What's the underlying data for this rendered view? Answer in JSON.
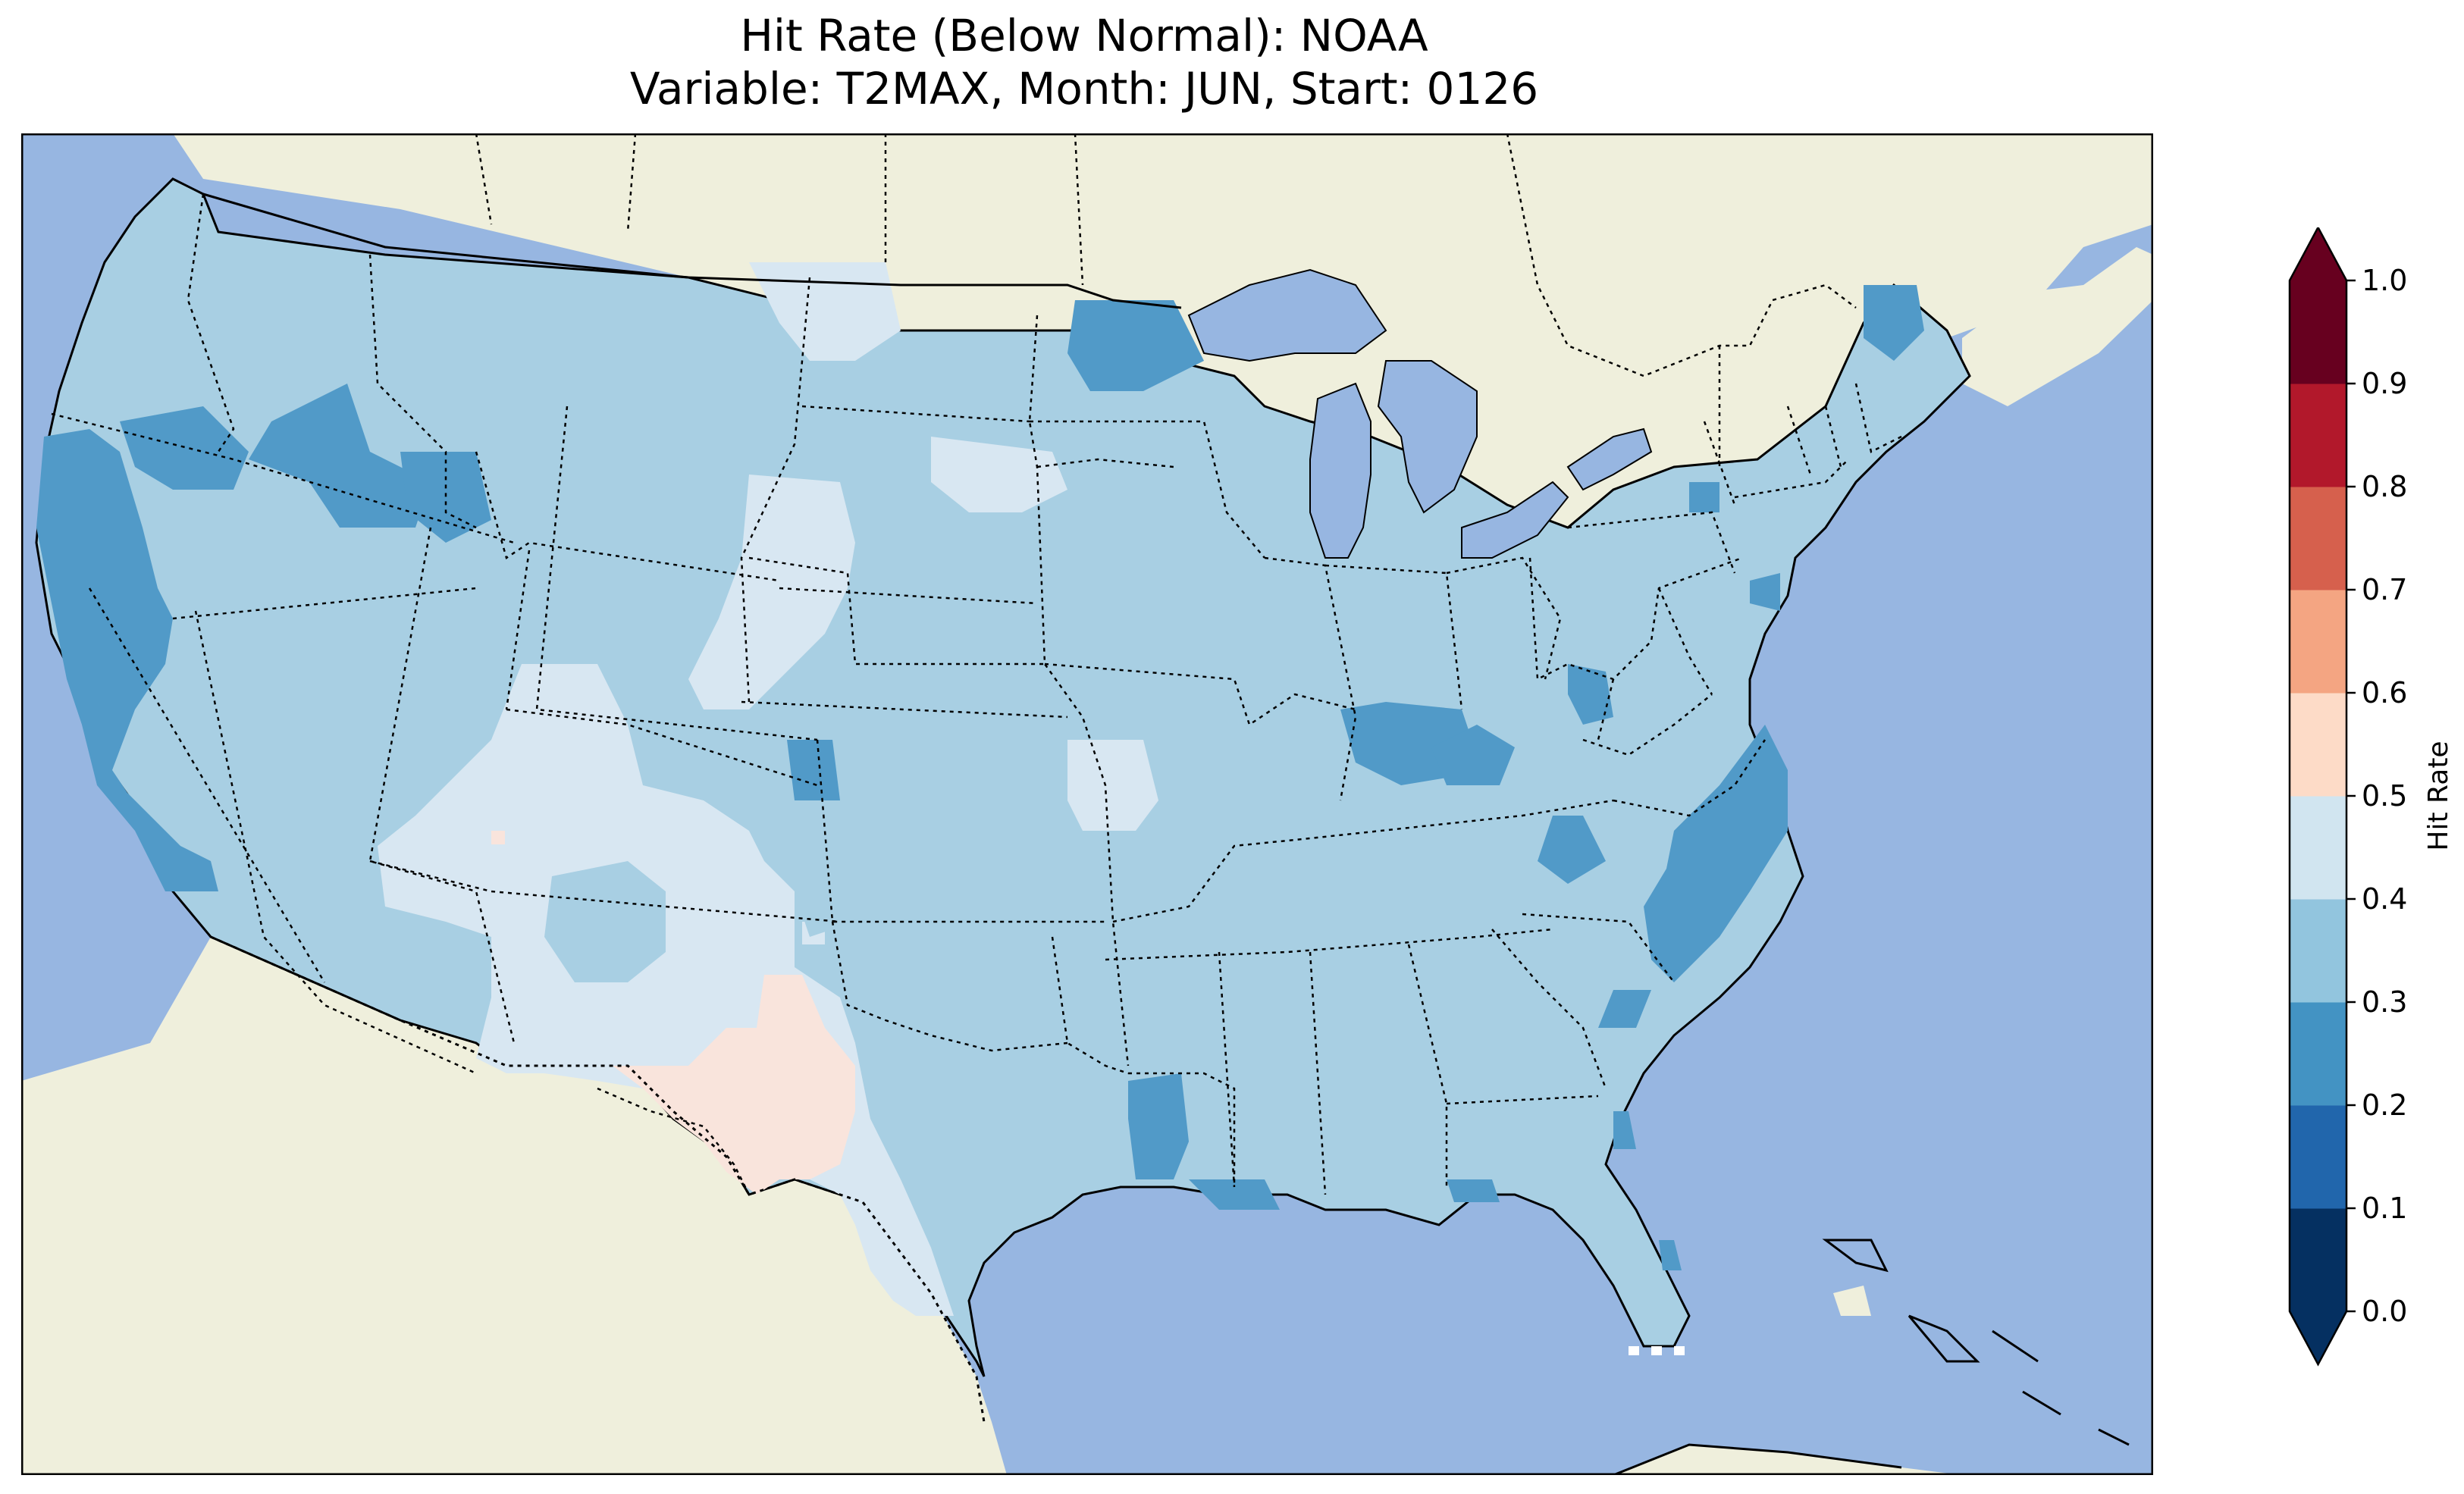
{
  "title": {
    "line1": "Hit Rate (Below Normal): NOAA",
    "line2": "Variable: T2MAX, Month: JUN, Start: 0126"
  },
  "map": {
    "region": "Contiguous United States",
    "colors": {
      "ocean": "#97b6e1",
      "land": "#efefdc",
      "lakes": "#97b6e1",
      "coastline": "#000000",
      "borders": "#000000"
    }
  },
  "colorbar": {
    "label": "Hit Rate",
    "ticks": [
      "0.0",
      "0.1",
      "0.2",
      "0.3",
      "0.4",
      "0.5",
      "0.6",
      "0.7",
      "0.8",
      "0.9",
      "1.0"
    ],
    "bins": [
      {
        "range": [
          0.0,
          0.1
        ],
        "color": "#053061"
      },
      {
        "range": [
          0.1,
          0.2
        ],
        "color": "#2166ac"
      },
      {
        "range": [
          0.2,
          0.3
        ],
        "color": "#4393c3"
      },
      {
        "range": [
          0.3,
          0.4
        ],
        "color": "#92c5de"
      },
      {
        "range": [
          0.4,
          0.5
        ],
        "color": "#d1e5f0"
      },
      {
        "range": [
          0.5,
          0.6
        ],
        "color": "#fddbc7"
      },
      {
        "range": [
          0.6,
          0.7
        ],
        "color": "#f4a582"
      },
      {
        "range": [
          0.7,
          0.8
        ],
        "color": "#d6604d"
      },
      {
        "range": [
          0.8,
          0.9
        ],
        "color": "#b2182b"
      },
      {
        "range": [
          0.9,
          1.0
        ],
        "color": "#67001f"
      }
    ],
    "extend": "both",
    "under_color": "#053061",
    "over_color": "#67001f"
  },
  "regions": [
    {
      "name": "west-coast-ca-or",
      "bin": "0.2-0.3"
    },
    {
      "name": "idaho-oregon",
      "bin": "0.2-0.3"
    },
    {
      "name": "minnesota-north",
      "bin": "0.2-0.3"
    },
    {
      "name": "kentucky",
      "bin": "0.2-0.3"
    },
    {
      "name": "carolina-coast",
      "bin": "0.2-0.3"
    },
    {
      "name": "maine",
      "bin": "0.2-0.3"
    },
    {
      "name": "louisiana",
      "bin": "0.2-0.3"
    },
    {
      "name": "new-mexico-colorado",
      "bin": "0.4-0.5"
    },
    {
      "name": "south-dakota-wyoming",
      "bin": "0.4-0.5"
    },
    {
      "name": "texas-east",
      "bin": "0.4-0.5"
    },
    {
      "name": "west-texas",
      "bin": "0.5-0.6"
    },
    {
      "name": "missouri-southwest",
      "bin": "0.4-0.5"
    }
  ]
}
